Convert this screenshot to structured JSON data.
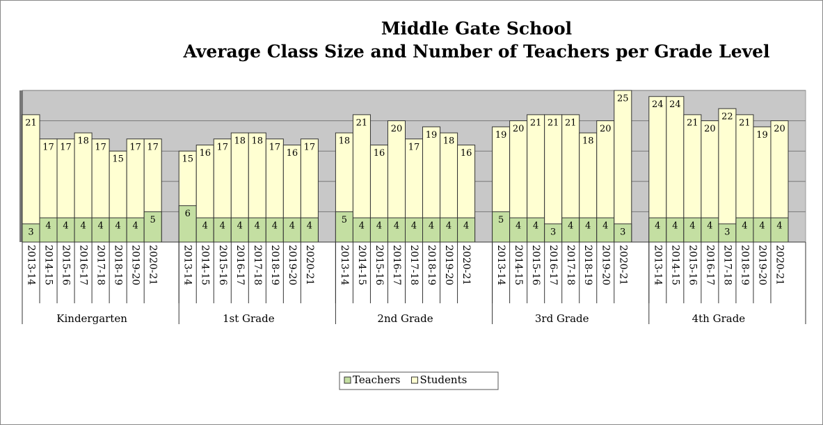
{
  "chart_data": {
    "type": "bar",
    "title": [
      "Middle Gate School",
      "Average Class Size and Number of Teachers per Grade Level"
    ],
    "groups": [
      "Kindergarten",
      "1st Grade",
      "2nd Grade",
      "3rd Grade",
      "4th Grade"
    ],
    "categories": [
      [
        "2013-14",
        "2014-15",
        "2015-16",
        "2016-17",
        "2017-18",
        "2018-19",
        "2019-20",
        "2020-21"
      ],
      [
        "2013-14",
        "2014-15",
        "2015-16",
        "2016-17",
        "2017-18",
        "2018-19",
        "2019-20",
        "2020-21"
      ],
      [
        "2013-14",
        "2014-15",
        "2015-16",
        "2016-17",
        "2017-18",
        "2018-19",
        "2019-20",
        "2020-21"
      ],
      [
        "2013-14",
        "2014-15",
        "2015-16",
        "2016-17",
        "2017-18",
        "2018-19",
        "2019-20",
        "2020-21"
      ],
      [
        "2013-14",
        "2014-15",
        "2015-16",
        "2016-17",
        "2017-18",
        "2018-19",
        "2019-20",
        "2020-21"
      ]
    ],
    "series": [
      {
        "name": "Students",
        "color": "#ffffd2",
        "values": [
          [
            21,
            17,
            17,
            18,
            17,
            15,
            17,
            17
          ],
          [
            15,
            16,
            17,
            18,
            18,
            17,
            16,
            17
          ],
          [
            18,
            21,
            16,
            20,
            17,
            19,
            18,
            16
          ],
          [
            19,
            20,
            21,
            21,
            21,
            18,
            20,
            25
          ],
          [
            24,
            24,
            21,
            20,
            22,
            21,
            19,
            20
          ]
        ]
      },
      {
        "name": "Teachers",
        "color": "#c4dfa2",
        "values": [
          [
            3,
            4,
            4,
            4,
            4,
            4,
            4,
            5
          ],
          [
            6,
            4,
            4,
            4,
            4,
            4,
            4,
            4
          ],
          [
            5,
            4,
            4,
            4,
            4,
            4,
            4,
            4
          ],
          [
            5,
            4,
            4,
            3,
            4,
            4,
            4,
            3
          ],
          [
            4,
            4,
            4,
            4,
            3,
            4,
            4,
            4
          ]
        ]
      }
    ],
    "legend_order": [
      "Teachers",
      "Students"
    ],
    "ylim": [
      0,
      25
    ],
    "yticks": [
      0,
      5,
      10,
      15,
      20,
      25
    ],
    "grid": true
  }
}
